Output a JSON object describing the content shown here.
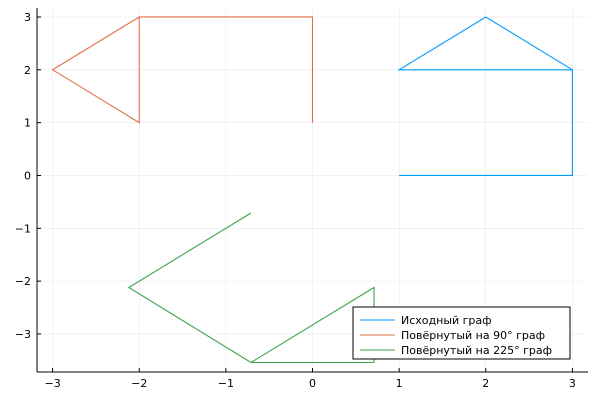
{
  "chart_data": {
    "type": "line",
    "title": "",
    "xlabel": "",
    "ylabel": "",
    "xlim": [
      -3.18,
      3.18
    ],
    "ylim": [
      -3.72,
      3.17
    ],
    "xticks": [
      -3,
      -2,
      -1,
      0,
      1,
      2,
      3
    ],
    "yticks": [
      -3,
      -2,
      -1,
      0,
      1,
      2,
      3
    ],
    "xtick_labels": [
      "−3",
      "−2",
      "−1",
      "0",
      "1",
      "2",
      "3"
    ],
    "ytick_labels": [
      "−3",
      "−2",
      "−1",
      "0",
      "1",
      "2",
      "3"
    ],
    "grid": true,
    "legend_position": "bottom-right",
    "series": [
      {
        "name": "Исходный граф",
        "color": "#009af9",
        "x": [
          1,
          3,
          3,
          1,
          1,
          2,
          3
        ],
        "y": [
          0,
          0,
          2,
          2,
          2,
          3,
          2
        ]
      },
      {
        "name": "Повёрнутый на 90° граф",
        "color": "#e26f46",
        "x": [
          0,
          0,
          -2,
          -2,
          -2,
          -3,
          -2
        ],
        "y": [
          1,
          3,
          3,
          1,
          1,
          2,
          3
        ]
      },
      {
        "name": "Повёрнутый на 225° граф",
        "color": "#3da44d",
        "x": [
          -0.71,
          0.71,
          0.71,
          -0.71,
          -2.12,
          -0.71
        ],
        "y": [
          -3.54,
          -3.54,
          -2.12,
          -3.54,
          -2.12,
          -0.71
        ]
      }
    ]
  }
}
